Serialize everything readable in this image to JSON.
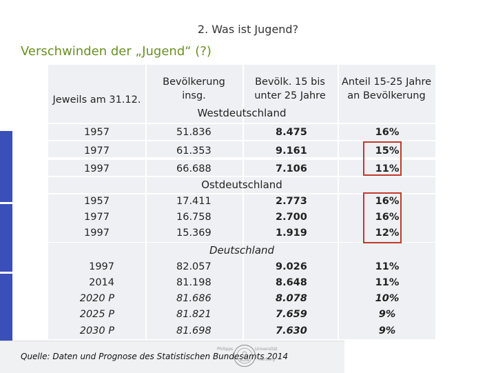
{
  "header": "2. Was ist Jugend?",
  "title": "Verschwinden der „Jugend“ (?)",
  "table": {
    "columns": {
      "date": "Jeweils am 31.12.",
      "total_line1": "Bevölkerung",
      "total_line2": "insg.",
      "youth_line1": "Bevölk. 15 bis",
      "youth_line2": "unter 25 Jahre",
      "share_line1": "Anteil 15-25 Jahre",
      "share_line2": "an Bevölkerung"
    },
    "sections": [
      {
        "name": "Westdeutschland",
        "rows": [
          {
            "year": "1957",
            "total": "51.836",
            "youth": "8.475",
            "share": "16%"
          },
          {
            "year": "1977",
            "total": "61.353",
            "youth": "9.161",
            "share": "15%"
          },
          {
            "year": "1997",
            "total": "66.688",
            "youth": "7.106",
            "share": "11%"
          }
        ]
      },
      {
        "name": "Ostdeutschland",
        "rows": [
          {
            "year": "1957",
            "total": "17.411",
            "youth": "2.773",
            "share": "16%"
          },
          {
            "year": "1977",
            "total": "16.758",
            "youth": "2.700",
            "share": "16%"
          },
          {
            "year": "1997",
            "total": "15.369",
            "youth": "1.919",
            "share": "12%"
          }
        ]
      },
      {
        "name": "Deutschland",
        "rows": [
          {
            "year": "1997",
            "total": "82.057",
            "youth": "9.026",
            "share": "11%"
          },
          {
            "year": "2014",
            "total": "81.198",
            "youth": "8.648",
            "share": "11%"
          },
          {
            "year": "2020 P",
            "total": "81.686",
            "youth": "8.078",
            "share": "10%"
          },
          {
            "year": "2025 P",
            "total": "81.821",
            "youth": "7.659",
            "share": "9%"
          },
          {
            "year": "2030 P",
            "total": "81.698",
            "youth": "7.630",
            "share": "9%"
          }
        ]
      }
    ]
  },
  "source": "Quelle: Daten und Prognose des Statistischen Bundesamts 2014",
  "logo": {
    "line1": "Philipps",
    "line2": "Universität",
    "line3": "Marburg"
  },
  "colors": {
    "accent_blue": "#3b4fb8",
    "title_green": "#6a8f25",
    "highlight_red": "#c0392b",
    "row_band": "#eef0f3"
  }
}
